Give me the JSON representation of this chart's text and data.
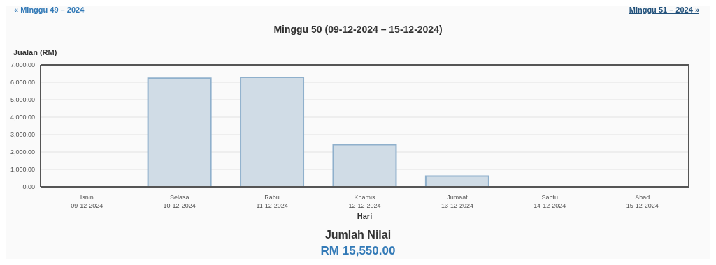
{
  "chart_data": {
    "type": "bar",
    "title": "Minggu 50 (09-12-2024 – 15-12-2024)",
    "ylabel": "Jualan (RM)",
    "xlabel": "Hari",
    "categories": [
      "Isnin\n09-12-2024",
      "Selasa\n10-12-2024",
      "Rabu\n11-12-2024",
      "Khamis\n12-12-2024",
      "Jumaat\n13-12-2024",
      "Sabtu\n14-12-2024",
      "Ahad\n15-12-2024"
    ],
    "values": [
      0,
      6230,
      6280,
      2420,
      620,
      0,
      0
    ],
    "color": "#d0dce6",
    "ylim": [
      0,
      7000
    ],
    "yticks": [
      {
        "value": 0,
        "label": "0.00"
      },
      {
        "value": 1000,
        "label": "1,000.00"
      },
      {
        "value": 2000,
        "label": "2,000.00"
      },
      {
        "value": 3000,
        "label": "3,000.00"
      },
      {
        "value": 4000,
        "label": "4,000.00"
      },
      {
        "value": 5000,
        "label": "5,000.00"
      },
      {
        "value": 6000,
        "label": "6,000.00"
      },
      {
        "value": 7000,
        "label": "7,000.00"
      }
    ],
    "grid": "y",
    "annotations": [
      "« Minggu 49 – 2024",
      "Minggu 51 – 2024 »",
      "Jumlah Nilai",
      "RM 15,550.00"
    ]
  }
}
